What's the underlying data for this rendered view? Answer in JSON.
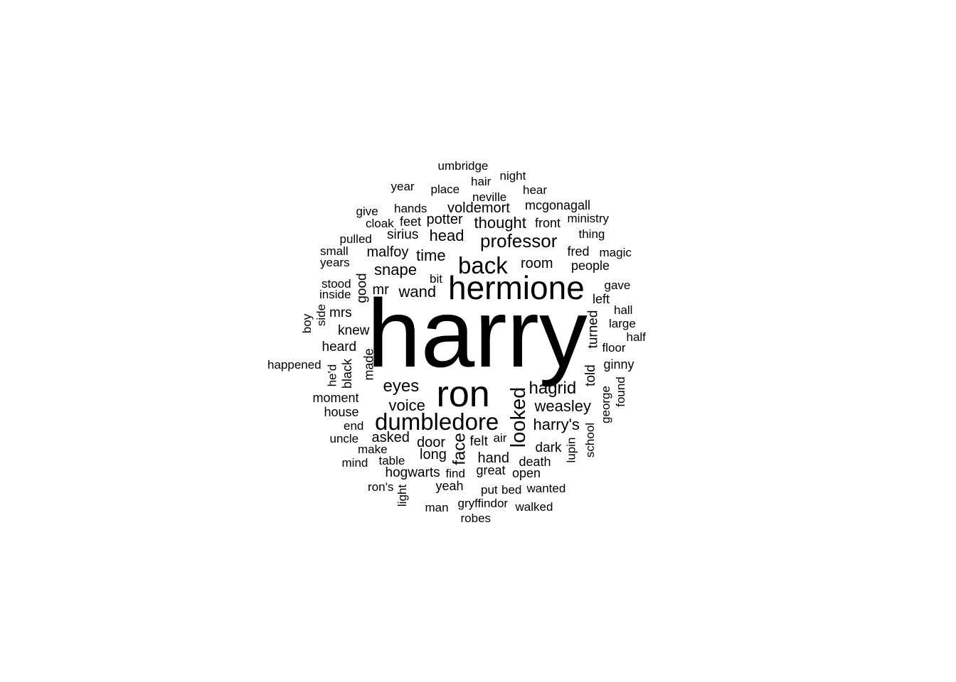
{
  "chart_data": {
    "type": "wordcloud",
    "title": "",
    "text_color": "#000000",
    "background_color": "#ffffff",
    "words": [
      {
        "text": "harry",
        "weight": 100,
        "rotated": false
      },
      {
        "text": "hermione",
        "weight": 36,
        "rotated": false
      },
      {
        "text": "ron",
        "weight": 41,
        "rotated": false
      },
      {
        "text": "back",
        "weight": 28,
        "rotated": false
      },
      {
        "text": "dumbledore",
        "weight": 26,
        "rotated": false
      },
      {
        "text": "looked",
        "weight": 24,
        "rotated": true
      },
      {
        "text": "professor",
        "weight": 21,
        "rotated": false
      },
      {
        "text": "hagrid",
        "weight": 19,
        "rotated": false
      },
      {
        "text": "eyes",
        "weight": 18,
        "rotated": false
      },
      {
        "text": "face",
        "weight": 18,
        "rotated": true
      },
      {
        "text": "weasley",
        "weight": 17,
        "rotated": false
      },
      {
        "text": "time",
        "weight": 17,
        "rotated": false
      },
      {
        "text": "voice",
        "weight": 17,
        "rotated": false
      },
      {
        "text": "snape",
        "weight": 17,
        "rotated": false
      },
      {
        "text": "thought",
        "weight": 17,
        "rotated": false
      },
      {
        "text": "harry's",
        "weight": 17,
        "rotated": false
      },
      {
        "text": "head",
        "weight": 17,
        "rotated": false
      },
      {
        "text": "wand",
        "weight": 17,
        "rotated": false
      },
      {
        "text": "voldemort",
        "weight": 16,
        "rotated": false
      },
      {
        "text": "room",
        "weight": 16,
        "rotated": false
      },
      {
        "text": "malfoy",
        "weight": 16,
        "rotated": false
      },
      {
        "text": "potter",
        "weight": 16,
        "rotated": false
      },
      {
        "text": "door",
        "weight": 16,
        "rotated": false
      },
      {
        "text": "mr",
        "weight": 16,
        "rotated": false
      },
      {
        "text": "asked",
        "weight": 16,
        "rotated": false
      },
      {
        "text": "long",
        "weight": 16,
        "rotated": false
      },
      {
        "text": "hand",
        "weight": 16,
        "rotated": false
      },
      {
        "text": "sirius",
        "weight": 15,
        "rotated": false
      },
      {
        "text": "knew",
        "weight": 15,
        "rotated": false
      },
      {
        "text": "heard",
        "weight": 15,
        "rotated": false
      },
      {
        "text": "dark",
        "weight": 15,
        "rotated": false
      },
      {
        "text": "hogwarts",
        "weight": 15,
        "rotated": false
      },
      {
        "text": "felt",
        "weight": 15,
        "rotated": false
      },
      {
        "text": "told",
        "weight": 15,
        "rotated": true
      },
      {
        "text": "turned",
        "weight": 15,
        "rotated": true
      },
      {
        "text": "mrs",
        "weight": 15,
        "rotated": false
      },
      {
        "text": "good",
        "weight": 15,
        "rotated": true
      },
      {
        "text": "great",
        "weight": 14,
        "rotated": false
      },
      {
        "text": "moment",
        "weight": 14,
        "rotated": false
      },
      {
        "text": "left",
        "weight": 14,
        "rotated": false
      },
      {
        "text": "black",
        "weight": 14,
        "rotated": true
      },
      {
        "text": "made",
        "weight": 14,
        "rotated": true
      },
      {
        "text": "people",
        "weight": 14,
        "rotated": false
      },
      {
        "text": "fred",
        "weight": 14,
        "rotated": false
      },
      {
        "text": "yeah",
        "weight": 14,
        "rotated": false
      },
      {
        "text": "feet",
        "weight": 14,
        "rotated": false
      },
      {
        "text": "front",
        "weight": 14,
        "rotated": false
      },
      {
        "text": "mcgonagall",
        "weight": 14,
        "rotated": false
      },
      {
        "text": "house",
        "weight": 14,
        "rotated": false
      },
      {
        "text": "ginny",
        "weight": 14,
        "rotated": false
      },
      {
        "text": "death",
        "weight": 14,
        "rotated": false
      },
      {
        "text": "open",
        "weight": 14,
        "rotated": false
      },
      {
        "text": "hands",
        "weight": 13,
        "rotated": false
      },
      {
        "text": "neville",
        "weight": 13,
        "rotated": false
      },
      {
        "text": "place",
        "weight": 13,
        "rotated": false
      },
      {
        "text": "umbridge",
        "weight": 13,
        "rotated": false
      },
      {
        "text": "night",
        "weight": 13,
        "rotated": false
      },
      {
        "text": "hear",
        "weight": 13,
        "rotated": false
      },
      {
        "text": "hair",
        "weight": 13,
        "rotated": false
      },
      {
        "text": "year",
        "weight": 13,
        "rotated": false
      },
      {
        "text": "give",
        "weight": 13,
        "rotated": false
      },
      {
        "text": "cloak",
        "weight": 13,
        "rotated": false
      },
      {
        "text": "pulled",
        "weight": 13,
        "rotated": false
      },
      {
        "text": "ministry",
        "weight": 13,
        "rotated": false
      },
      {
        "text": "thing",
        "weight": 13,
        "rotated": false
      },
      {
        "text": "magic",
        "weight": 13,
        "rotated": false
      },
      {
        "text": "small",
        "weight": 13,
        "rotated": false
      },
      {
        "text": "years",
        "weight": 13,
        "rotated": false
      },
      {
        "text": "stood",
        "weight": 13,
        "rotated": false
      },
      {
        "text": "inside",
        "weight": 13,
        "rotated": false
      },
      {
        "text": "bit",
        "weight": 13,
        "rotated": false
      },
      {
        "text": "gave",
        "weight": 13,
        "rotated": false
      },
      {
        "text": "hall",
        "weight": 13,
        "rotated": false
      },
      {
        "text": "large",
        "weight": 13,
        "rotated": false
      },
      {
        "text": "half",
        "weight": 13,
        "rotated": false
      },
      {
        "text": "floor",
        "weight": 13,
        "rotated": false
      },
      {
        "text": "boy",
        "weight": 13,
        "rotated": true
      },
      {
        "text": "side",
        "weight": 13,
        "rotated": true
      },
      {
        "text": "happened",
        "weight": 13,
        "rotated": false
      },
      {
        "text": "he'd",
        "weight": 13,
        "rotated": true
      },
      {
        "text": "found",
        "weight": 13,
        "rotated": true
      },
      {
        "text": "george",
        "weight": 13,
        "rotated": true
      },
      {
        "text": "end",
        "weight": 13,
        "rotated": false
      },
      {
        "text": "uncle",
        "weight": 13,
        "rotated": false
      },
      {
        "text": "make",
        "weight": 13,
        "rotated": false
      },
      {
        "text": "table",
        "weight": 13,
        "rotated": false
      },
      {
        "text": "mind",
        "weight": 13,
        "rotated": false
      },
      {
        "text": "air",
        "weight": 13,
        "rotated": false
      },
      {
        "text": "lupin",
        "weight": 13,
        "rotated": true
      },
      {
        "text": "school",
        "weight": 13,
        "rotated": true
      },
      {
        "text": "find",
        "weight": 13,
        "rotated": false
      },
      {
        "text": "ron's",
        "weight": 13,
        "rotated": false
      },
      {
        "text": "light",
        "weight": 13,
        "rotated": true
      },
      {
        "text": "put",
        "weight": 13,
        "rotated": false
      },
      {
        "text": "bed",
        "weight": 13,
        "rotated": false
      },
      {
        "text": "wanted",
        "weight": 13,
        "rotated": false
      },
      {
        "text": "gryffindor",
        "weight": 13,
        "rotated": false
      },
      {
        "text": "walked",
        "weight": 13,
        "rotated": false
      },
      {
        "text": "man",
        "weight": 13,
        "rotated": false
      },
      {
        "text": "robes",
        "weight": 13,
        "rotated": false
      }
    ]
  }
}
